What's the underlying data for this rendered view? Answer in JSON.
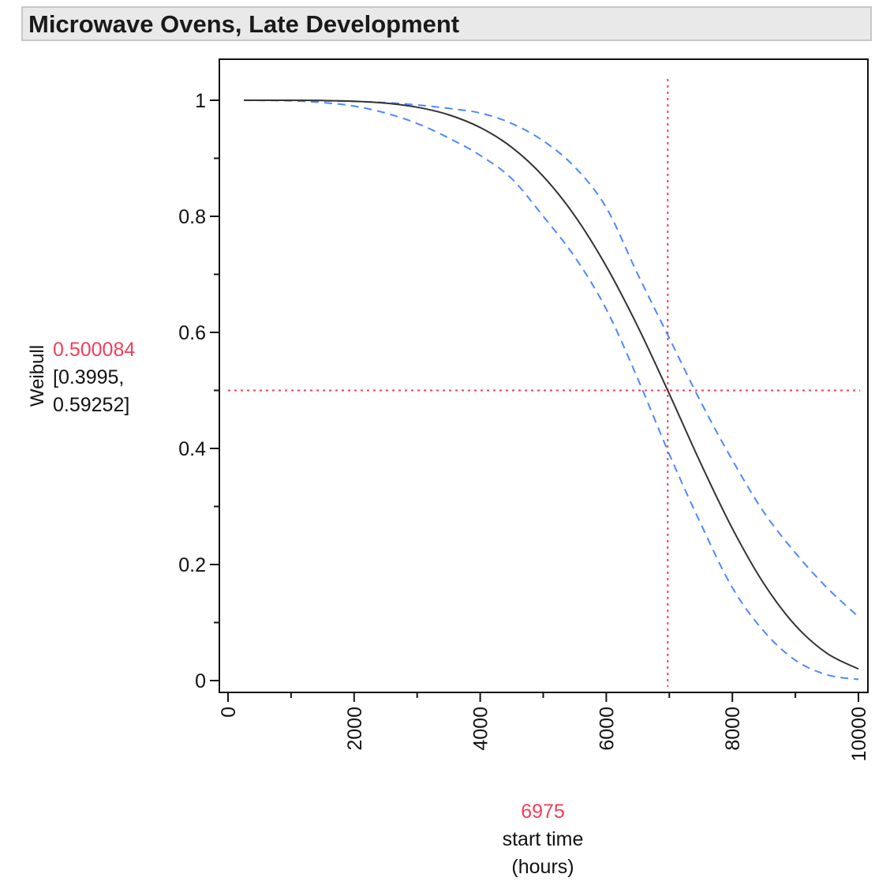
{
  "title": "Microwave Ovens, Late Development",
  "chart_data": {
    "type": "line",
    "ylabel": "Weibull",
    "xlabel_lines": [
      "start time",
      "(hours)"
    ],
    "xlim": [
      0,
      10000
    ],
    "ylim": [
      0,
      1
    ],
    "xticks": [
      0,
      2000,
      4000,
      6000,
      8000,
      10000
    ],
    "yticks": [
      0,
      0.2,
      0.4,
      0.6,
      0.8,
      1
    ],
    "grid": false,
    "crosshair": {
      "x": 6975,
      "y": 0.500084,
      "x_label": "6975",
      "y_label": "0.500084",
      "ci_label_1": "[0.3995,",
      "ci_label_2": "0.59252]"
    },
    "colors": {
      "estimate": "#333333",
      "bounds": "#4d88ff",
      "crosshair": "#f0405a"
    },
    "x": [
      250,
      1000,
      1500,
      2000,
      2500,
      3000,
      3500,
      4000,
      4500,
      5000,
      5500,
      6000,
      6500,
      7000,
      7500,
      8000,
      8500,
      9000,
      9500,
      10000
    ],
    "series": [
      {
        "role": "estimate",
        "style": "solid",
        "values": [
          1,
          1,
          0.9996,
          0.9983,
          0.995,
          0.988,
          0.975,
          0.953,
          0.919,
          0.869,
          0.801,
          0.714,
          0.61,
          0.494,
          0.374,
          0.262,
          0.167,
          0.095,
          0.047,
          0.02
        ]
      },
      {
        "role": "upper",
        "style": "dashed",
        "values": [
          1,
          1,
          0.999,
          0.998,
          0.996,
          0.992,
          0.986,
          0.978,
          0.96,
          0.93,
          0.885,
          0.815,
          0.7,
          0.59,
          0.48,
          0.38,
          0.29,
          0.22,
          0.16,
          0.11
        ]
      },
      {
        "role": "lower",
        "style": "dashed",
        "values": [
          1,
          0.999,
          0.996,
          0.99,
          0.978,
          0.96,
          0.935,
          0.905,
          0.865,
          0.8,
          0.73,
          0.64,
          0.52,
          0.39,
          0.27,
          0.16,
          0.085,
          0.035,
          0.01,
          0.002
        ]
      }
    ]
  }
}
